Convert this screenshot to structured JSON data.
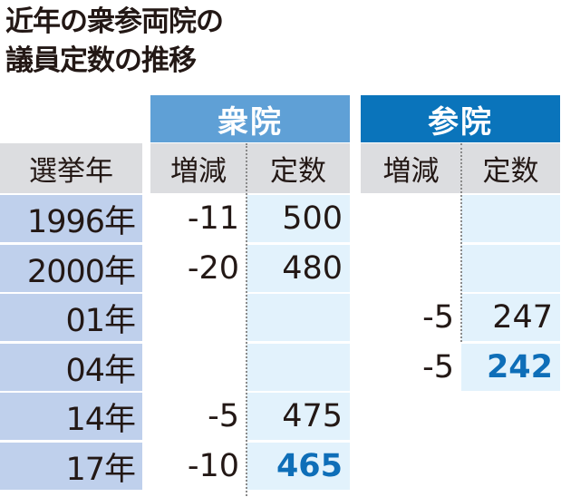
{
  "title": {
    "line1": "近年の衆参両院の",
    "line2": "議員定数の推移"
  },
  "headers": {
    "shugiin": "衆院",
    "sangiin": "参院",
    "year": "選挙年",
    "change": "増減",
    "count": "定数"
  },
  "colors": {
    "shugiin_header": "#5fa0d6",
    "sangiin_header": "#0a74bb",
    "year_column": "#bfd0ec",
    "count_column": "#e2f2fc",
    "subheader": "#dcdde0",
    "highlight_text": "#0e6eb8"
  },
  "rows": [
    {
      "year": "1996年",
      "shu_change": "-11",
      "shu_count": "500",
      "san_change": "",
      "san_count": ""
    },
    {
      "year": "2000年",
      "shu_change": "-20",
      "shu_count": "480",
      "san_change": "",
      "san_count": ""
    },
    {
      "year": "01年",
      "shu_change": "",
      "shu_count": "",
      "san_change": "-5",
      "san_count": "247"
    },
    {
      "year": "04年",
      "shu_change": "",
      "shu_count": "",
      "san_change": "-5",
      "san_count": "242"
    },
    {
      "year": "14年",
      "shu_change": "-5",
      "shu_count": "475",
      "san_change": "",
      "san_count": ""
    },
    {
      "year": "17年",
      "shu_change": "-10",
      "shu_count": "465",
      "san_change": "",
      "san_count": ""
    }
  ],
  "highlighted_values": [
    "242",
    "465"
  ]
}
